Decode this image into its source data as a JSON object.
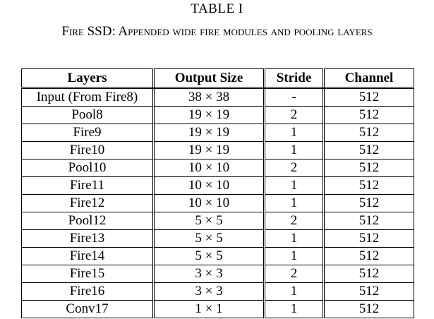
{
  "table": {
    "label": "TABLE I",
    "caption": "Fire SSD: Appended wide fire modules and pooling layers",
    "headers": {
      "layers": "Layers",
      "output_size": "Output Size",
      "stride": "Stride",
      "channel": "Channel"
    },
    "rows": [
      {
        "layers": "Input (From Fire8)",
        "output_size": "38 × 38",
        "stride": "-",
        "channel": "512"
      },
      {
        "layers": "Pool8",
        "output_size": "19 × 19",
        "stride": "2",
        "channel": "512"
      },
      {
        "layers": "Fire9",
        "output_size": "19 × 19",
        "stride": "1",
        "channel": "512"
      },
      {
        "layers": "Fire10",
        "output_size": "19 × 19",
        "stride": "1",
        "channel": "512"
      },
      {
        "layers": "Pool10",
        "output_size": "10 × 10",
        "stride": "2",
        "channel": "512"
      },
      {
        "layers": "Fire11",
        "output_size": "10 × 10",
        "stride": "1",
        "channel": "512"
      },
      {
        "layers": "Fire12",
        "output_size": "10 × 10",
        "stride": "1",
        "channel": "512"
      },
      {
        "layers": "Pool12",
        "output_size": "5 × 5",
        "stride": "2",
        "channel": "512"
      },
      {
        "layers": "Fire13",
        "output_size": "5 × 5",
        "stride": "1",
        "channel": "512"
      },
      {
        "layers": "Fire14",
        "output_size": "5 × 5",
        "stride": "1",
        "channel": "512"
      },
      {
        "layers": "Fire15",
        "output_size": "3 × 3",
        "stride": "2",
        "channel": "512"
      },
      {
        "layers": "Fire16",
        "output_size": "3 × 3",
        "stride": "1",
        "channel": "512"
      },
      {
        "layers": "Conv17",
        "output_size": "1 × 1",
        "stride": "1",
        "channel": "512"
      }
    ]
  }
}
